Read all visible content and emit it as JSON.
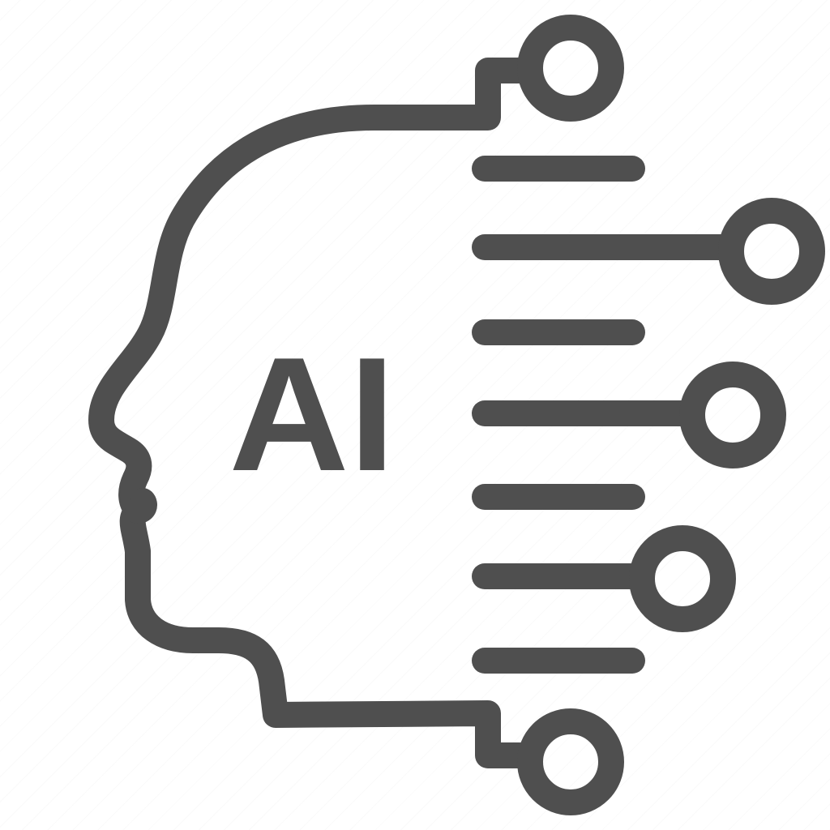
{
  "icon": {
    "name": "ai-head-circuit-icon",
    "label": "AI",
    "color": "#4f4f4f",
    "background": "#ffffff"
  }
}
